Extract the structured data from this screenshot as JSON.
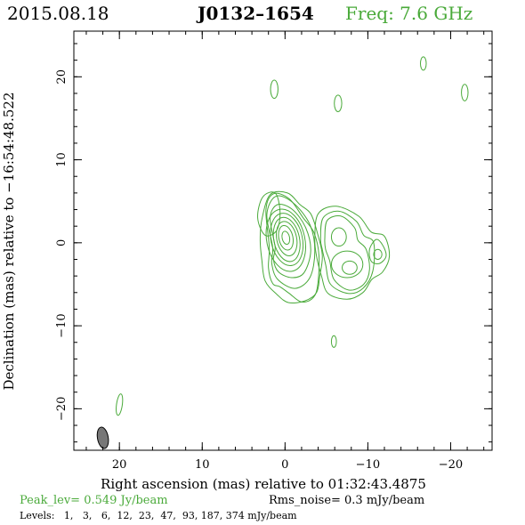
{
  "header": {
    "date": "2015.08.18",
    "source": "J0132–1654",
    "freq": "Freq: 7.6 GHz"
  },
  "footer": {
    "peak": "Peak_lev=  0.549 Jy/beam",
    "rms": "Rms_noise=  0.3 mJy/beam",
    "levels": "Levels:   1,   3,   6,  12,  23,  47,  93, 187, 374 mJy/beam"
  },
  "colors": {
    "contour": "#4aaa3a",
    "beam": "#777777",
    "header_freq": "#4aaa3a",
    "footer_peak": "#4aaa3a"
  },
  "chart_data": {
    "type": "contour",
    "xlabel": "Right ascension (mas) relative to 01:32:43.4875",
    "ylabel": "Declination (mas) relative to −16:54:48.522",
    "xlim": [
      25.5,
      -25
    ],
    "ylim": [
      -25,
      25.5
    ],
    "xticks": [
      {
        "v": 20,
        "label": "20"
      },
      {
        "v": 10,
        "label": "10"
      },
      {
        "v": 0,
        "label": "0"
      },
      {
        "v": -10,
        "label": "−10"
      },
      {
        "v": -20,
        "label": "−20"
      }
    ],
    "yticks": [
      {
        "v": 20,
        "label": "20"
      },
      {
        "v": 10,
        "label": "10"
      },
      {
        "v": 0,
        "label": "0"
      },
      {
        "v": -10,
        "label": "−10"
      },
      {
        "v": -20,
        "label": "−20"
      }
    ],
    "minor_step": 2,
    "beam": {
      "x": 22,
      "y": -23.5,
      "major": 2.6,
      "minor": 1.3,
      "pa": -10
    },
    "core_contours": [
      {
        "x": -0.1,
        "y": 0.3,
        "rx": 2.3,
        "ry": 3.8,
        "rot": -12
      },
      {
        "x": -0.2,
        "y": 0.4,
        "rx": 1.9,
        "ry": 3.2,
        "rot": -12
      },
      {
        "x": -0.2,
        "y": 0.4,
        "rx": 1.55,
        "ry": 2.7,
        "rot": -12
      },
      {
        "x": -0.2,
        "y": 0.5,
        "rx": 1.2,
        "ry": 2.1,
        "rot": -12
      },
      {
        "x": -0.1,
        "y": 0.6,
        "rx": 0.85,
        "ry": 1.5,
        "rot": -12
      },
      {
        "x": -0.1,
        "y": 0.6,
        "rx": 0.45,
        "ry": 0.8,
        "rot": -12
      }
    ],
    "knot_contours": [
      {
        "x": -6.5,
        "y": 0.7,
        "rx": 0.9,
        "ry": 1.1,
        "rot": 0
      },
      {
        "x": -7.8,
        "y": -3.0,
        "rx": 0.9,
        "ry": 0.8,
        "rot": 0
      },
      {
        "x": -11.2,
        "y": -1.4,
        "rx": 0.5,
        "ry": 0.6,
        "rot": 0
      },
      {
        "x": -7.5,
        "y": -2.6,
        "rx": 1.9,
        "ry": 1.6,
        "rot": 0
      }
    ],
    "outline_contours": [
      [
        [
          1.5,
          -0.5
        ],
        [
          2.2,
          3.4
        ],
        [
          1.1,
          5.6
        ],
        [
          -1.0,
          4.8
        ],
        [
          -3.0,
          2.2
        ],
        [
          -3.6,
          -1.0
        ],
        [
          -3.0,
          -4.2
        ],
        [
          -1.2,
          -5.5
        ],
        [
          0.9,
          -4.4
        ],
        [
          1.6,
          -2.5
        ]
      ],
      [
        [
          1.2,
          -0.5
        ],
        [
          1.8,
          3.0
        ],
        [
          0.9,
          4.6
        ],
        [
          -0.9,
          4.0
        ],
        [
          -2.5,
          1.8
        ],
        [
          -3.1,
          -1.0
        ],
        [
          -2.3,
          -3.6
        ],
        [
          -0.8,
          -4.2
        ],
        [
          0.8,
          -3.5
        ],
        [
          1.4,
          -2.0
        ]
      ],
      [
        [
          1.9,
          -0.5
        ],
        [
          2.3,
          4.0
        ],
        [
          1.4,
          5.9
        ],
        [
          -0.5,
          5.3
        ],
        [
          -2.2,
          3.0
        ],
        [
          -3.5,
          1.2
        ],
        [
          -4.1,
          -1.6
        ],
        [
          -3.9,
          -5.4
        ],
        [
          -3.2,
          -6.8
        ],
        [
          -1.9,
          -7.1
        ],
        [
          -0.5,
          -6.1
        ],
        [
          0.6,
          -5.3
        ],
        [
          1.5,
          -4.9
        ],
        [
          2.0,
          -3.0
        ]
      ],
      [
        [
          -4.8,
          0.5
        ],
        [
          -5.1,
          2.7
        ],
        [
          -6.8,
          3.2
        ],
        [
          -8.4,
          1.8
        ],
        [
          -8.8,
          0.3
        ],
        [
          -9.8,
          -0.8
        ],
        [
          -10.2,
          -3.2
        ],
        [
          -9.5,
          -5.0
        ],
        [
          -7.7,
          -5.7
        ],
        [
          -5.9,
          -4.4
        ],
        [
          -5.4,
          -2.2
        ],
        [
          -4.9,
          -0.8
        ]
      ],
      [
        [
          -4.3,
          0.4
        ],
        [
          -4.6,
          3.0
        ],
        [
          -6.5,
          3.8
        ],
        [
          -8.6,
          2.6
        ],
        [
          -9.5,
          0.9
        ],
        [
          -10.7,
          0.0
        ],
        [
          -10.6,
          -3.4
        ],
        [
          -9.4,
          -5.5
        ],
        [
          -7.6,
          -6.1
        ],
        [
          -5.5,
          -5.0
        ],
        [
          -4.9,
          -2.6
        ],
        [
          -4.5,
          -0.8
        ]
      ],
      [
        [
          -3.6,
          0.5
        ],
        [
          -4.0,
          3.5
        ],
        [
          -6.2,
          4.4
        ],
        [
          -8.9,
          3.2
        ],
        [
          -10.4,
          1.3
        ],
        [
          -12.0,
          0.8
        ],
        [
          -12.6,
          -1.6
        ],
        [
          -11.8,
          -3.5
        ],
        [
          -10.5,
          -4.4
        ],
        [
          -9.4,
          -6.0
        ],
        [
          -7.5,
          -6.8
        ],
        [
          -5.2,
          -6.1
        ],
        [
          -4.4,
          -4.0
        ],
        [
          -3.8,
          -1.6
        ]
      ],
      [
        [
          3.0,
          0.3
        ],
        [
          2.8,
          2.8
        ],
        [
          1.8,
          5.8
        ],
        [
          -0.3,
          6.0
        ],
        [
          -1.8,
          4.6
        ],
        [
          -3.1,
          3.5
        ],
        [
          -3.9,
          1.2
        ],
        [
          -4.5,
          -1.5
        ],
        [
          -4.2,
          -4.0
        ],
        [
          -3.8,
          -6.0
        ],
        [
          -2.4,
          -7.0
        ],
        [
          -0.4,
          -7.2
        ],
        [
          1.0,
          -6.2
        ],
        [
          2.4,
          -4.6
        ],
        [
          2.8,
          -2.1
        ]
      ]
    ],
    "separate_contours": [
      [
        [
          3.3,
          3.0
        ],
        [
          2.7,
          5.5
        ],
        [
          1.2,
          6.0
        ],
        [
          0.6,
          3.8
        ],
        [
          1.0,
          1.5
        ],
        [
          2.4,
          0.9
        ]
      ],
      [
        [
          -11.0,
          0.4
        ],
        [
          -11.8,
          -0.3
        ],
        [
          -12.2,
          -1.6
        ],
        [
          -11.4,
          -2.5
        ],
        [
          -10.4,
          -2.2
        ],
        [
          -10.2,
          -0.8
        ]
      ]
    ],
    "isolated_contours": [
      {
        "x": 1.3,
        "y": 18.5,
        "rx": 0.45,
        "ry": 1.1,
        "rot": 0
      },
      {
        "x": -6.4,
        "y": 16.8,
        "rx": 0.45,
        "ry": 1.0,
        "rot": 0
      },
      {
        "x": -16.7,
        "y": 21.6,
        "rx": 0.35,
        "ry": 0.8,
        "rot": 0
      },
      {
        "x": -21.7,
        "y": 18.1,
        "rx": 0.4,
        "ry": 1.0,
        "rot": 0
      },
      {
        "x": -5.9,
        "y": -11.9,
        "rx": 0.3,
        "ry": 0.7,
        "rot": 0
      },
      {
        "x": 20.0,
        "y": -19.5,
        "rx": 0.35,
        "ry": 1.3,
        "rot": 8
      }
    ]
  }
}
